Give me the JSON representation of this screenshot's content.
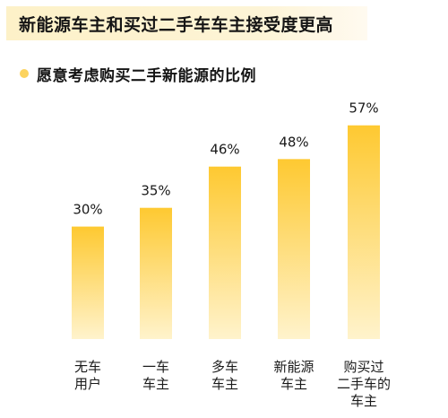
{
  "title": "新能源车主和买过二手车车主接受度更高",
  "subtitle": "愿意考虑购买二手新能源的比例",
  "colors": {
    "bar_top": "#fec931",
    "bar_bottom": "#fff3cc",
    "accent_dot": "#fcd35e",
    "banner_bg": "#fdf1c8",
    "text": "#1a1a1a"
  },
  "chart_data": {
    "type": "bar",
    "categories": [
      [
        "无车",
        "用户"
      ],
      [
        "一车",
        "车主"
      ],
      [
        "多车",
        "车主"
      ],
      [
        "新能源",
        "车主"
      ],
      [
        "购买过",
        "二手车的",
        "车主"
      ]
    ],
    "values": [
      30,
      35,
      46,
      48,
      57
    ],
    "value_labels": [
      "30%",
      "35%",
      "46%",
      "48%",
      "57%"
    ],
    "unit": "%",
    "ylim": [
      0,
      100
    ],
    "grid": false,
    "legend": "none"
  }
}
